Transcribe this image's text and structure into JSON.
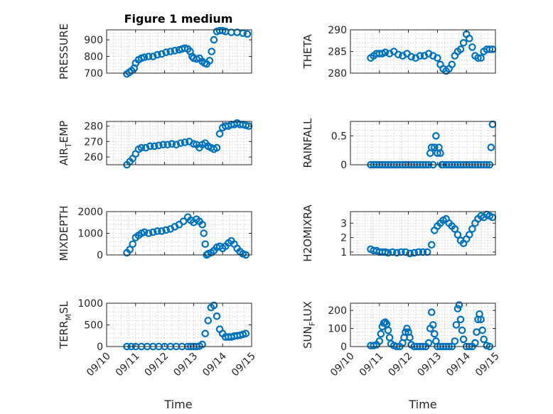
{
  "figure": {
    "title": "Figure 1 medium"
  },
  "colors": {
    "marker": "#0072BD",
    "axis": "#262626",
    "grid": "#c8c8c8"
  },
  "chart_data": [
    {
      "type": "scatter",
      "id": "pressure",
      "ylabel": "PRESSURE",
      "ylim": [
        700,
        960
      ],
      "yticks": [
        700,
        800,
        900
      ],
      "yticklabels": [
        "700",
        "800",
        "900"
      ],
      "xlim": [
        0,
        5
      ],
      "grid": true,
      "x": [
        0.7,
        0.78,
        0.86,
        0.95,
        1.0,
        1.1,
        1.2,
        1.3,
        1.45,
        1.6,
        1.75,
        1.9,
        2.05,
        2.2,
        2.35,
        2.5,
        2.6,
        2.7,
        2.8,
        2.88,
        2.95,
        3.0,
        3.1,
        3.2,
        3.3,
        3.38,
        3.45,
        3.55,
        3.62,
        3.7,
        3.8,
        3.9,
        4.0,
        4.1,
        4.3,
        4.5,
        4.7,
        4.85
      ],
      "y": [
        695,
        705,
        715,
        730,
        760,
        780,
        790,
        795,
        800,
        800,
        810,
        815,
        825,
        830,
        835,
        840,
        845,
        850,
        845,
        830,
        800,
        790,
        785,
        790,
        770,
        760,
        755,
        775,
        830,
        900,
        950,
        955,
        955,
        950,
        945,
        945,
        940,
        935
      ]
    },
    {
      "type": "scatter",
      "id": "theta",
      "ylabel": "THETA",
      "ylim": [
        280,
        290
      ],
      "yticks": [
        280,
        285,
        290
      ],
      "yticklabels": [
        "280",
        "285",
        "290"
      ],
      "xlim": [
        0,
        5
      ],
      "grid": true,
      "x": [
        0.7,
        0.8,
        0.9,
        1.0,
        1.1,
        1.2,
        1.35,
        1.5,
        1.65,
        1.8,
        1.95,
        2.1,
        2.25,
        2.4,
        2.55,
        2.7,
        2.85,
        3.0,
        3.1,
        3.2,
        3.3,
        3.4,
        3.5,
        3.6,
        3.7,
        3.8,
        3.9,
        4.0,
        4.1,
        4.2,
        4.3,
        4.4,
        4.5,
        4.6,
        4.7,
        4.8,
        4.9
      ],
      "y": [
        283.5,
        284,
        284.5,
        284.5,
        284.5,
        284.8,
        284.5,
        285,
        284.3,
        284,
        284.5,
        283.8,
        283.5,
        284,
        284,
        284.5,
        284,
        283.5,
        282,
        281,
        280.5,
        281,
        282,
        284,
        285,
        285.5,
        287,
        289,
        288,
        286,
        284,
        283.5,
        283.5,
        285,
        285.5,
        285.5,
        285.5
      ]
    },
    {
      "type": "scatter",
      "id": "air_temp",
      "ylabel": "AIR_TEMP",
      "ylim": [
        255,
        283
      ],
      "yticks": [
        260,
        270,
        280
      ],
      "yticklabels": [
        "260",
        "270",
        "280"
      ],
      "xlim": [
        0,
        5
      ],
      "grid": true,
      "x": [
        0.7,
        0.8,
        0.9,
        1.0,
        1.1,
        1.2,
        1.35,
        1.5,
        1.65,
        1.8,
        1.95,
        2.1,
        2.25,
        2.4,
        2.55,
        2.7,
        2.85,
        3.0,
        3.1,
        3.2,
        3.3,
        3.4,
        3.5,
        3.6,
        3.7,
        3.8,
        3.9,
        4.0,
        4.1,
        4.2,
        4.3,
        4.4,
        4.5,
        4.6,
        4.7,
        4.8,
        4.9
      ],
      "y": [
        255,
        257,
        259,
        262,
        265,
        266,
        266,
        267,
        267,
        267.5,
        268,
        268,
        268.5,
        268,
        269,
        269.5,
        270,
        268.5,
        268,
        266,
        268,
        269,
        267,
        266,
        265,
        266,
        275,
        279,
        280,
        280,
        281,
        281,
        282,
        281,
        281,
        280.5,
        280
      ]
    },
    {
      "type": "scatter",
      "id": "rainfall",
      "ylabel": "RAINFALL",
      "ylim": [
        0,
        0.75
      ],
      "yticks": [
        0,
        0.5
      ],
      "yticklabels": [
        "0",
        "0.5"
      ],
      "xlim": [
        0,
        5
      ],
      "grid": true,
      "x": [
        0.7,
        0.8,
        0.9,
        1.0,
        1.1,
        1.2,
        1.3,
        1.4,
        1.5,
        1.6,
        1.7,
        1.8,
        1.9,
        2.0,
        2.1,
        2.2,
        2.3,
        2.4,
        2.5,
        2.6,
        2.7,
        2.75,
        2.8,
        2.85,
        2.9,
        2.95,
        3.0,
        3.05,
        3.1,
        3.15,
        3.2,
        3.3,
        3.4,
        3.5,
        3.6,
        3.7,
        3.8,
        3.9,
        4.0,
        4.1,
        4.2,
        4.3,
        4.4,
        4.5,
        4.6,
        4.7,
        4.8,
        4.85,
        4.9
      ],
      "y": [
        0,
        0,
        0,
        0,
        0,
        0,
        0,
        0,
        0,
        0,
        0,
        0,
        0,
        0,
        0,
        0,
        0,
        0,
        0,
        0,
        0,
        0.2,
        0.3,
        0,
        0.3,
        0.5,
        0.2,
        0.3,
        0.2,
        0,
        0,
        0,
        0,
        0,
        0,
        0,
        0,
        0,
        0,
        0,
        0,
        0,
        0,
        0,
        0,
        0,
        0,
        0.3,
        0.7
      ]
    },
    {
      "type": "scatter",
      "id": "mixdepth",
      "ylabel": "MIXDEPTH",
      "ylim": [
        0,
        2000
      ],
      "yticks": [
        0,
        1000,
        2000
      ],
      "yticklabels": [
        "0",
        "1000",
        "2000"
      ],
      "xlim": [
        0,
        5
      ],
      "grid": true,
      "x": [
        0.7,
        0.8,
        0.9,
        1.0,
        1.1,
        1.2,
        1.3,
        1.45,
        1.6,
        1.75,
        1.9,
        2.05,
        2.2,
        2.35,
        2.5,
        2.65,
        2.8,
        2.9,
        3.0,
        3.1,
        3.2,
        3.3,
        3.35,
        3.4,
        3.45,
        3.5,
        3.6,
        3.7,
        3.8,
        3.9,
        4.0,
        4.1,
        4.2,
        4.3,
        4.4,
        4.5,
        4.6,
        4.7,
        4.8
      ],
      "y": [
        100,
        250,
        500,
        800,
        900,
        1000,
        1050,
        1000,
        1050,
        1100,
        1100,
        1150,
        1200,
        1300,
        1400,
        1550,
        1750,
        1600,
        1500,
        1650,
        1550,
        1400,
        1000,
        500,
        0,
        50,
        100,
        200,
        350,
        400,
        300,
        400,
        550,
        650,
        500,
        300,
        150,
        50,
        0
      ]
    },
    {
      "type": "scatter",
      "id": "h2omixra",
      "ylabel": "H2OMIXRA",
      "ylim": [
        0.8,
        3.8
      ],
      "yticks": [
        1,
        2,
        3
      ],
      "yticklabels": [
        "1",
        "2",
        "3"
      ],
      "xlim": [
        0,
        5
      ],
      "grid": true,
      "x": [
        0.7,
        0.8,
        0.9,
        1.0,
        1.1,
        1.2,
        1.3,
        1.45,
        1.6,
        1.75,
        1.9,
        2.05,
        2.2,
        2.35,
        2.5,
        2.65,
        2.8,
        2.9,
        3.0,
        3.1,
        3.2,
        3.3,
        3.4,
        3.5,
        3.6,
        3.7,
        3.8,
        3.9,
        4.0,
        4.1,
        4.2,
        4.3,
        4.4,
        4.5,
        4.6,
        4.7,
        4.8,
        4.9
      ],
      "y": [
        1.2,
        1.1,
        1.1,
        1.0,
        1.0,
        1.0,
        0.95,
        1.0,
        0.95,
        1.0,
        1.0,
        0.9,
        0.95,
        1.0,
        1.0,
        1.0,
        1.5,
        2.5,
        2.8,
        3.0,
        3.2,
        3.3,
        3.0,
        2.8,
        2.6,
        2.2,
        1.8,
        1.6,
        1.9,
        2.2,
        2.6,
        3.0,
        3.3,
        3.5,
        3.4,
        3.6,
        3.5,
        3.4
      ]
    },
    {
      "type": "scatter",
      "id": "terr_msl",
      "ylabel": "TERR_MSL",
      "ylim": [
        0,
        1000
      ],
      "yticks": [
        0,
        500,
        1000
      ],
      "yticklabels": [
        "0",
        "500",
        "1000"
      ],
      "xlim": [
        0,
        5
      ],
      "grid": true,
      "x": [
        0.7,
        0.85,
        1.0,
        1.2,
        1.4,
        1.6,
        1.8,
        2.0,
        2.2,
        2.4,
        2.6,
        2.8,
        2.9,
        3.0,
        3.1,
        3.2,
        3.3,
        3.4,
        3.5,
        3.6,
        3.7,
        3.8,
        3.9,
        4.0,
        4.1,
        4.2,
        4.3,
        4.4,
        4.5,
        4.6,
        4.7,
        4.8
      ],
      "y": [
        0,
        0,
        0,
        0,
        0,
        0,
        0,
        0,
        0,
        0,
        0,
        0,
        0,
        0,
        0,
        10,
        50,
        300,
        600,
        900,
        950,
        700,
        400,
        300,
        220,
        220,
        220,
        240,
        250,
        260,
        280,
        300
      ]
    },
    {
      "type": "scatter",
      "id": "sun_flux",
      "ylabel": "SUN_FLUX",
      "ylim": [
        0,
        240
      ],
      "yticks": [
        0,
        100,
        200
      ],
      "yticklabels": [
        "0",
        "100",
        "200"
      ],
      "xlim": [
        0,
        5
      ],
      "grid": true,
      "x": [
        0.7,
        0.8,
        0.9,
        1.0,
        1.05,
        1.1,
        1.15,
        1.2,
        1.25,
        1.3,
        1.35,
        1.4,
        1.5,
        1.6,
        1.7,
        1.8,
        1.85,
        1.9,
        1.95,
        2.0,
        2.05,
        2.1,
        2.2,
        2.3,
        2.4,
        2.5,
        2.6,
        2.7,
        2.75,
        2.8,
        2.85,
        2.9,
        2.95,
        3.0,
        3.1,
        3.2,
        3.3,
        3.4,
        3.5,
        3.6,
        3.65,
        3.7,
        3.75,
        3.8,
        3.85,
        3.9,
        4.0,
        4.1,
        4.2,
        4.3,
        4.35,
        4.4,
        4.45,
        4.5,
        4.55,
        4.6,
        4.7,
        4.8
      ],
      "y": [
        5,
        5,
        10,
        30,
        70,
        110,
        130,
        135,
        125,
        90,
        50,
        15,
        5,
        0,
        0,
        20,
        50,
        80,
        100,
        80,
        50,
        10,
        0,
        0,
        0,
        0,
        0,
        20,
        100,
        190,
        120,
        70,
        30,
        0,
        0,
        0,
        0,
        0,
        0,
        30,
        120,
        210,
        230,
        150,
        90,
        40,
        0,
        0,
        0,
        20,
        80,
        150,
        180,
        150,
        90,
        40,
        5,
        0
      ]
    }
  ],
  "shared_x_axis": {
    "xlabel": "Time",
    "ticks": [
      0,
      1,
      2,
      3,
      4,
      5
    ],
    "ticklabels": [
      "09/10",
      "09/11",
      "09/12",
      "09/13",
      "09/14",
      "09/15"
    ]
  }
}
